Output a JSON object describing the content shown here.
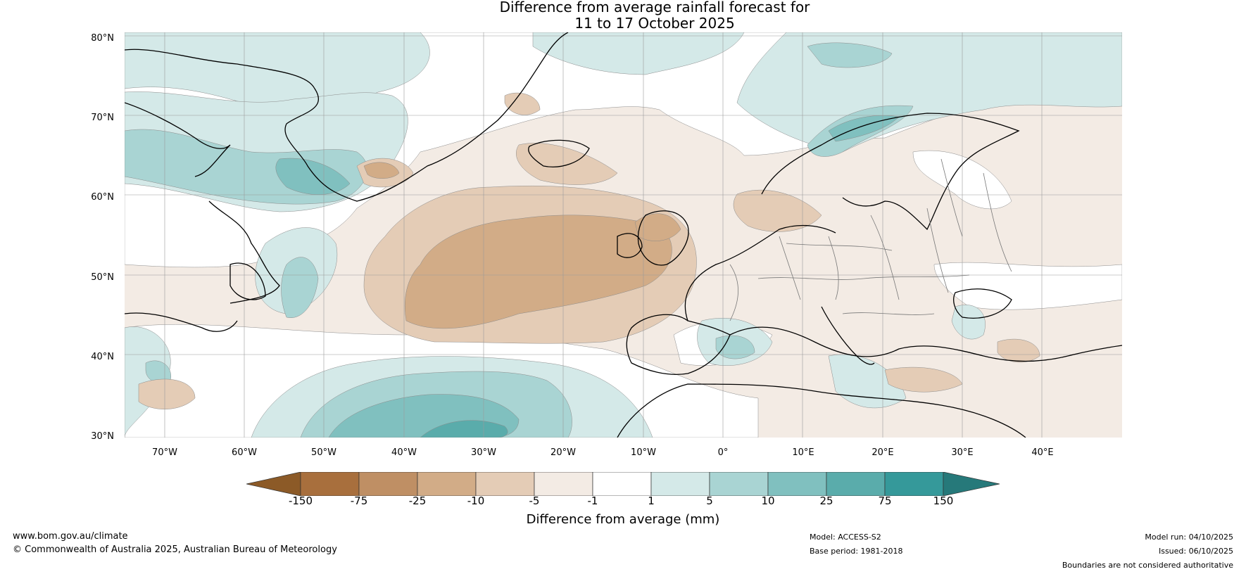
{
  "title": {
    "line1": "Difference from average rainfall forecast for",
    "line2": "11 to 17 October 2025"
  },
  "map": {
    "region": "North Atlantic and Europe",
    "lat_labels": [
      "80°N",
      "70°N",
      "60°N",
      "50°N",
      "40°N",
      "30°N"
    ],
    "lon_labels": [
      "70°W",
      "60°W",
      "50°W",
      "40°W",
      "30°W",
      "20°W",
      "10°W",
      "0°",
      "10°E",
      "20°E",
      "30°E",
      "40°E"
    ]
  },
  "colorbar": {
    "ticks": [
      "-150",
      "-75",
      "-25",
      "-10",
      "-5",
      "-1",
      "1",
      "5",
      "10",
      "25",
      "75",
      "150"
    ],
    "colors": [
      "#8c5a27",
      "#a86f3d",
      "#bf8f64",
      "#d2ac87",
      "#e4ccb6",
      "#f3ebe4",
      "#ffffff",
      "#d4e9e8",
      "#a9d4d3",
      "#80c0bf",
      "#5aacab",
      "#35999a",
      "#26797a"
    ],
    "label": "Difference from average (mm)"
  },
  "footer": {
    "website": "www.bom.gov.au/climate",
    "copyright": "© Commonwealth of Australia 2025, Australian Bureau of Meteorology",
    "model": "Model: ACCESS-S2",
    "base_period": "Base period: 1981-2018",
    "model_run": "Model run: 04/10/2025",
    "issued": "Issued: 06/10/2025",
    "disclaimer": "Boundaries are not considered authoritative"
  }
}
